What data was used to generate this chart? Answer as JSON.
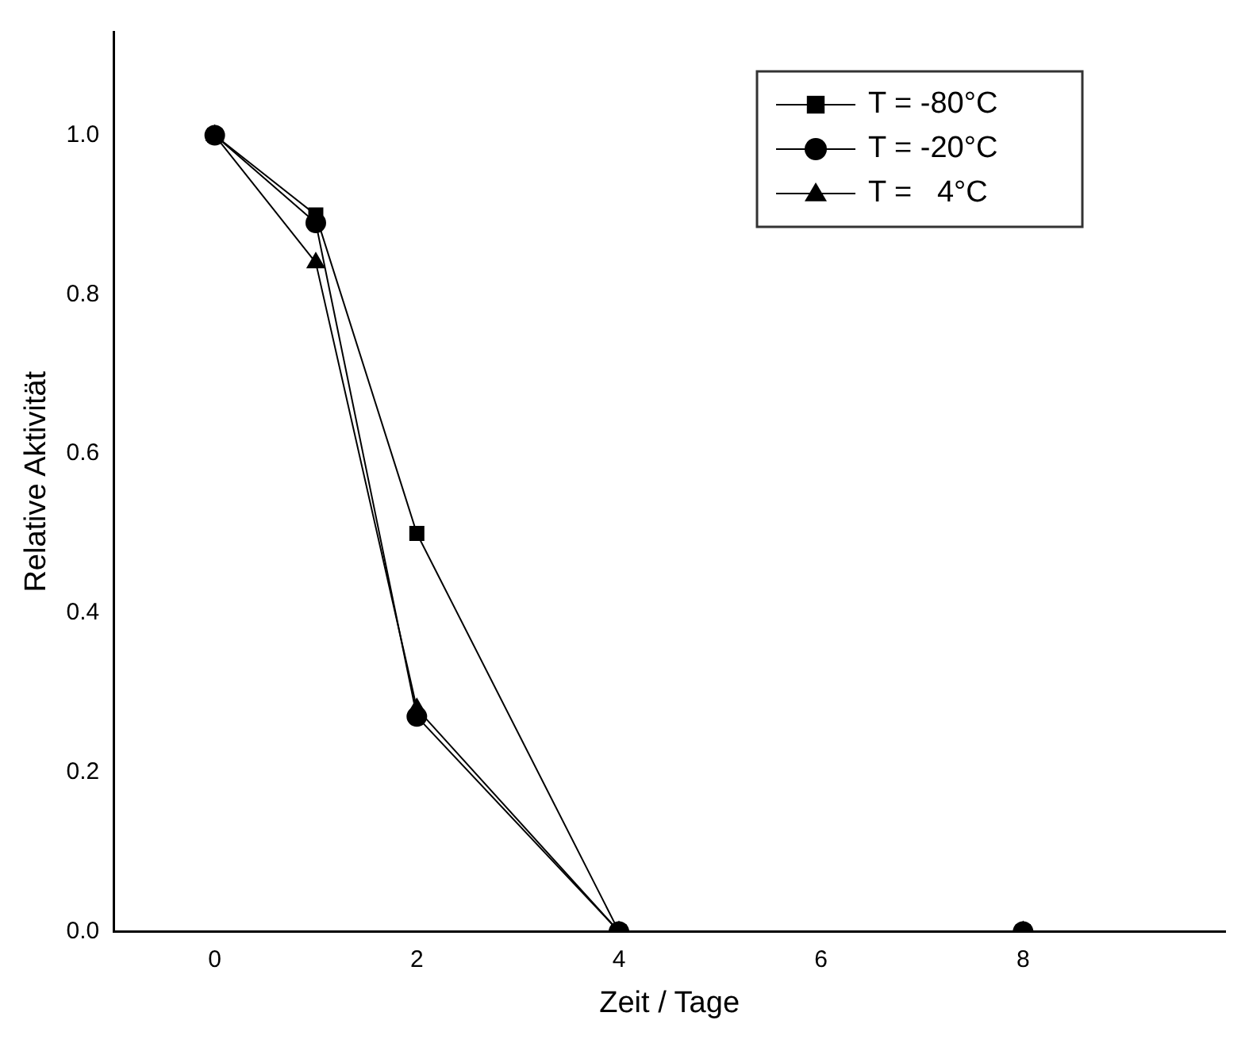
{
  "chart_data": {
    "type": "line",
    "xlabel": "Zeit / Tage",
    "ylabel": "Relative Aktivität",
    "x": [
      0,
      1,
      2,
      4,
      8
    ],
    "series": [
      {
        "name": "T = -80°C",
        "color": "#000000",
        "marker": "square",
        "values": [
          1.0,
          0.9,
          0.5,
          0,
          0
        ]
      },
      {
        "name": "T = -20°C",
        "color": "#000000",
        "marker": "circle",
        "values": [
          1.0,
          0.89,
          0.27,
          0,
          0
        ]
      },
      {
        "name": "T =   4°C",
        "color": "#000000",
        "marker": "triangle",
        "values": [
          1.0,
          0.84,
          0.28,
          0,
          0
        ]
      }
    ],
    "xlim": [
      -1,
      10
    ],
    "xticks": [
      0,
      2,
      4,
      6,
      8
    ],
    "ylim": [
      0,
      1.13
    ],
    "yticks": [
      {
        "value": 0,
        "label": "0.0"
      },
      {
        "value": 0.2,
        "label": "0.2"
      },
      {
        "value": 0.4,
        "label": "0.4"
      },
      {
        "value": 0.6,
        "label": "0.6"
      },
      {
        "value": 0.8,
        "label": "0.8"
      },
      {
        "value": 1,
        "label": "1.0"
      }
    ],
    "grid": false,
    "legend": "top right"
  }
}
